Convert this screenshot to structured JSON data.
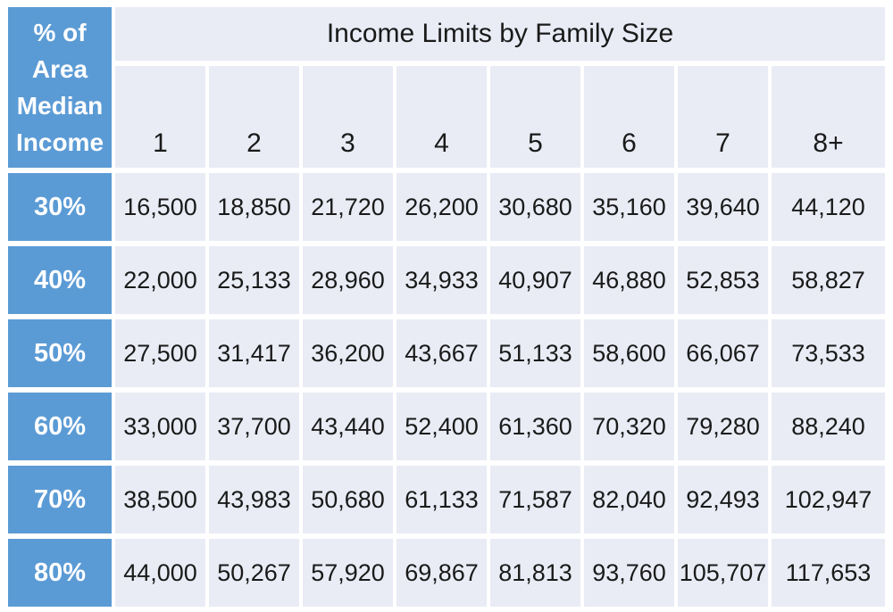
{
  "table": {
    "corner": {
      "lines": [
        "% of",
        "Area",
        "Median",
        "Income"
      ]
    },
    "title": "Income Limits by Family Size",
    "family_sizes": [
      "1",
      "2",
      "3",
      "4",
      "5",
      "6",
      "7",
      "8+"
    ],
    "rows": [
      {
        "label": "30%",
        "values": [
          "16,500",
          "18,850",
          "21,720",
          "26,200",
          "30,680",
          "35,160",
          "39,640",
          "44,120"
        ]
      },
      {
        "label": "40%",
        "values": [
          "22,000",
          "25,133",
          "28,960",
          "34,933",
          "40,907",
          "46,880",
          "52,853",
          "58,827"
        ]
      },
      {
        "label": "50%",
        "values": [
          "27,500",
          "31,417",
          "36,200",
          "43,667",
          "51,133",
          "58,600",
          "66,067",
          "73,533"
        ]
      },
      {
        "label": "60%",
        "values": [
          "33,000",
          "37,700",
          "43,440",
          "52,400",
          "61,360",
          "70,320",
          "79,280",
          "88,240"
        ]
      },
      {
        "label": "70%",
        "values": [
          "38,500",
          "43,983",
          "50,680",
          "61,133",
          "71,587",
          "82,040",
          "92,493",
          "102,947"
        ]
      },
      {
        "label": "80%",
        "values": [
          "44,000",
          "50,267",
          "57,920",
          "69,867",
          "81,813",
          "93,760",
          "105,707",
          "117,653"
        ]
      }
    ],
    "colors": {
      "header_blue": "#5B9BD5",
      "cell_background": "#E9ECF5",
      "gridline": "#FFFFFF",
      "text_dark": "#1a1a1a",
      "text_light": "#FFFFFF"
    }
  },
  "chart_data": {
    "type": "table",
    "title": "Income Limits by Family Size",
    "row_header_label": "% of Area Median Income",
    "columns": [
      "1",
      "2",
      "3",
      "4",
      "5",
      "6",
      "7",
      "8+"
    ],
    "rows": [
      {
        "label": "30%",
        "values": [
          16500,
          18850,
          21720,
          26200,
          30680,
          35160,
          39640,
          44120
        ]
      },
      {
        "label": "40%",
        "values": [
          22000,
          25133,
          28960,
          34933,
          40907,
          46880,
          52853,
          58827
        ]
      },
      {
        "label": "50%",
        "values": [
          27500,
          31417,
          36200,
          43667,
          51133,
          58600,
          66067,
          73533
        ]
      },
      {
        "label": "60%",
        "values": [
          33000,
          37700,
          43440,
          52400,
          61360,
          70320,
          79280,
          88240
        ]
      },
      {
        "label": "70%",
        "values": [
          38500,
          43983,
          50680,
          61133,
          71587,
          82040,
          92493,
          102947
        ]
      },
      {
        "label": "80%",
        "values": [
          44000,
          50267,
          57920,
          69867,
          81813,
          93760,
          105707,
          117653
        ]
      }
    ],
    "layout": {
      "grid": true,
      "header_fill": "#5B9BD5",
      "body_fill": "#E9ECF5"
    }
  }
}
